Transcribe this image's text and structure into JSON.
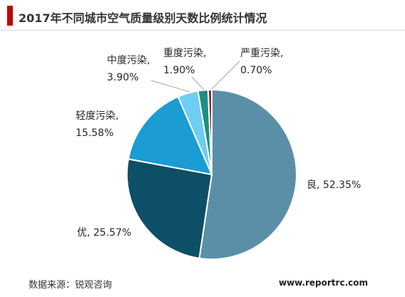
{
  "chart_data": {
    "type": "pie",
    "title": "2017年不同城市空气质量级别天数比例统计情况",
    "unit": "%",
    "start_angle_deg": 0,
    "direction": "clockwise",
    "slices": [
      {
        "label": "良",
        "value": 52.35,
        "text": "52.35%",
        "color": "#5b8fa8"
      },
      {
        "label": "优",
        "value": 25.57,
        "text": "25.57%",
        "color": "#0d4f66"
      },
      {
        "label": "轻度污染",
        "value": 15.58,
        "text": "15.58%",
        "color": "#1b9cd3"
      },
      {
        "label": "中度污染",
        "value": 3.9,
        "text": "3.90%",
        "color": "#6fcdf2"
      },
      {
        "label": "重度污染",
        "value": 1.9,
        "text": "1.90%",
        "color": "#1d8f86"
      },
      {
        "label": "严重污染",
        "value": 0.7,
        "text": "0.70%",
        "color": "#8b2a1c"
      }
    ],
    "legend": "none",
    "labels": "outside-with-leader-lines"
  },
  "footer": {
    "source": "数据来源：锐观咨询",
    "site": "www.reportrc.com"
  }
}
